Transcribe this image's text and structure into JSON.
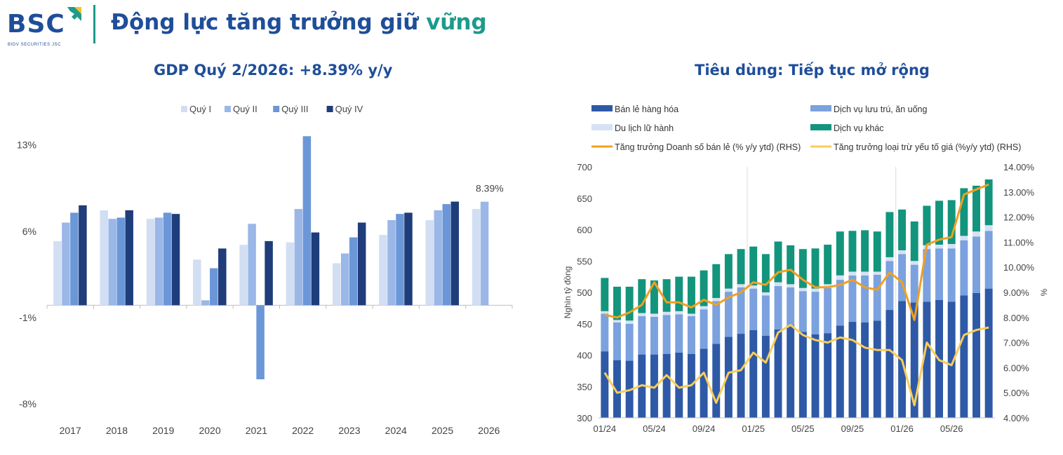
{
  "header": {
    "logo_text": "BSC",
    "logo_subtitle": "BIDV SECURITIES JSC",
    "title_main": "Động lực tăng trưởng giữ",
    "title_accent": "vững",
    "colors": {
      "brand": "#1f4e99",
      "accent": "#1d9b8b"
    }
  },
  "chart_data": [
    {
      "type": "bar",
      "title": "GDP Quý 2/2026: +8.39% y/y",
      "categories": [
        "2017",
        "2018",
        "2019",
        "2020",
        "2021",
        "2022",
        "2023",
        "2024",
        "2025",
        "2026"
      ],
      "series": [
        {
          "name": "Quý I",
          "color": "#d2dff2",
          "values": [
            5.2,
            7.7,
            7.0,
            3.7,
            4.9,
            5.1,
            3.4,
            5.7,
            6.9,
            7.8
          ]
        },
        {
          "name": "Quý II",
          "color": "#9bb7e8",
          "values": [
            6.7,
            7.0,
            7.1,
            0.4,
            6.6,
            7.8,
            4.2,
            6.9,
            7.7,
            8.39
          ]
        },
        {
          "name": "Quý III",
          "color": "#6b97d8",
          "values": [
            7.5,
            7.1,
            7.5,
            3.0,
            -6.0,
            13.7,
            5.5,
            7.4,
            8.2,
            null
          ]
        },
        {
          "name": "Quý IV",
          "color": "#1f3d7a",
          "values": [
            8.1,
            7.7,
            7.4,
            4.6,
            5.2,
            5.9,
            6.7,
            7.5,
            8.4,
            null
          ]
        }
      ],
      "yticks": [
        "13%",
        "6%",
        "-1%",
        "-8%"
      ],
      "ylim": [
        -8,
        13
      ],
      "data_label": "8.39%",
      "legend": "top"
    },
    {
      "type": "bar+line",
      "title": "Tiêu dùng: Tiếp tục mở rộng",
      "ylabel": "Nghìn tỷ đồng",
      "ylabel_right": "%",
      "ylim": [
        300,
        700
      ],
      "ylim_right": [
        4.0,
        14.0
      ],
      "yticks_left": [
        "700",
        "650",
        "600",
        "550",
        "500",
        "450",
        "400",
        "350",
        "300"
      ],
      "yticks_right": [
        "14.00%",
        "13.00%",
        "12.00%",
        "11.00%",
        "10.00%",
        "9.00%",
        "8.00%",
        "7.00%",
        "6.00%",
        "5.00%",
        "4.00%"
      ],
      "x_tick_labels": [
        "01/24",
        "05/24",
        "09/24",
        "01/25",
        "05/25",
        "09/25",
        "01/26",
        "05/26"
      ],
      "legend": "top",
      "stacked_series": [
        {
          "name": "Bán lẻ hàng hóa",
          "color": "#2e59a6",
          "values": [
            406,
            392,
            391,
            401,
            401,
            402,
            404,
            402,
            410,
            418,
            429,
            434,
            440,
            431,
            441,
            447,
            437,
            433,
            435,
            447,
            453,
            452,
            455,
            472,
            486,
            484,
            485,
            488,
            485,
            495,
            499,
            506
          ]
        },
        {
          "name": "Dịch vụ lưu trú, ăn uống",
          "color": "#7ba1de",
          "values": [
            60,
            60,
            59,
            61,
            60,
            62,
            61,
            60,
            63,
            68,
            72,
            74,
            66,
            64,
            69,
            61,
            65,
            68,
            72,
            73,
            74,
            75,
            73,
            78,
            75,
            60,
            84,
            82,
            85,
            88,
            90,
            92
          ]
        },
        {
          "name": "Du lịch lữ hành",
          "color": "#d5e2f4",
          "values": [
            4,
            4,
            5,
            5,
            5,
            5,
            5,
            4,
            5,
            5,
            5,
            5,
            5,
            5,
            6,
            5,
            5,
            5,
            6,
            7,
            6,
            6,
            5,
            6,
            6,
            6,
            6,
            6,
            7,
            7,
            8,
            9
          ]
        },
        {
          "name": "Dịch vụ khác",
          "color": "#12957c",
          "values": [
            53,
            53,
            54,
            54,
            53,
            52,
            55,
            59,
            57,
            54,
            55,
            56,
            62,
            61,
            65,
            62,
            62,
            64,
            63,
            70,
            65,
            66,
            64,
            72,
            65,
            63,
            63,
            70,
            70,
            76,
            73,
            73
          ]
        }
      ],
      "line_series": [
        {
          "name": "Tăng trưởng Doanh số bán lẻ (% y/y ytd) (RHS)",
          "color": "#f0a020",
          "values": [
            8.1,
            8.0,
            8.2,
            8.5,
            9.4,
            8.6,
            8.6,
            8.4,
            8.7,
            8.5,
            8.8,
            9.0,
            9.4,
            9.3,
            9.8,
            9.9,
            9.5,
            9.2,
            9.2,
            9.3,
            9.5,
            9.2,
            9.1,
            9.8,
            9.4,
            7.9,
            10.9,
            11.1,
            11.2,
            12.9,
            13.1,
            13.3
          ]
        },
        {
          "name": "Tăng trưởng loại trừ yếu tố giá (%y/y ytd) (RHS)",
          "color": "#f8cd58",
          "values": [
            5.8,
            5.0,
            5.1,
            5.3,
            5.2,
            5.7,
            5.2,
            5.3,
            5.8,
            4.6,
            5.8,
            5.9,
            6.6,
            6.2,
            7.4,
            7.7,
            7.3,
            7.1,
            7.0,
            7.2,
            7.1,
            6.8,
            6.7,
            6.7,
            6.3,
            4.5,
            7.0,
            6.3,
            6.1,
            7.3,
            7.5,
            7.6
          ]
        }
      ]
    }
  ]
}
